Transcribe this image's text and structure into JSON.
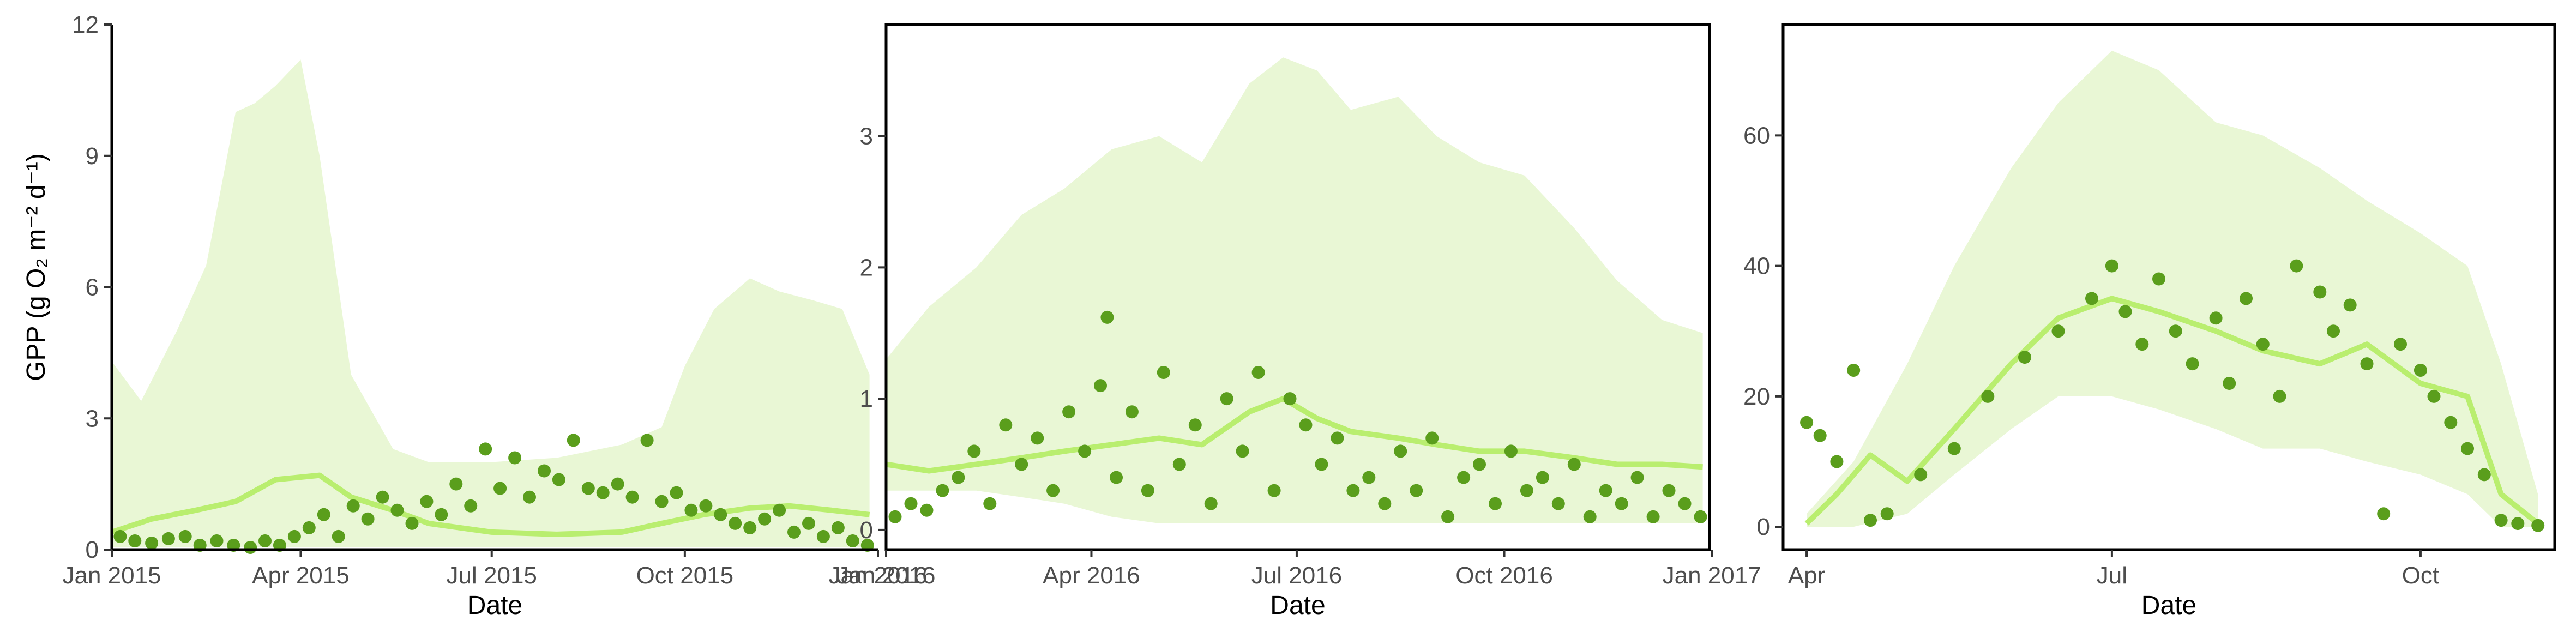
{
  "colors": {
    "band": "#e9f7d5",
    "line": "#b9ee6f",
    "points": "#5a9e1c",
    "axis": "#000000",
    "tick_text": "#4d4d4d"
  },
  "chart_data": [
    {
      "type": "line",
      "xlabel": "Date",
      "ylabel": "GPP (g O₂ m⁻² d⁻¹)",
      "ylim": [
        0,
        12
      ],
      "yticks": [
        0,
        3,
        6,
        9,
        12
      ],
      "xlim": [
        "2015-01-01",
        "2016-01-01"
      ],
      "xticks": [
        {
          "date": "2015-01-01",
          "label": "Jan 2015"
        },
        {
          "date": "2015-04-01",
          "label": "Apr 2015"
        },
        {
          "date": "2015-07-01",
          "label": "Jul 2015"
        },
        {
          "date": "2015-10-01",
          "label": "Oct 2015"
        },
        {
          "date": "2016-01-01",
          "label": "Jan 2016"
        }
      ],
      "band": {
        "x": [
          "2015-01-01",
          "2015-01-15",
          "2015-02-01",
          "2015-02-15",
          "2015-03-01",
          "2015-03-10",
          "2015-03-20",
          "2015-04-01",
          "2015-04-10",
          "2015-04-25",
          "2015-05-15",
          "2015-06-01",
          "2015-07-01",
          "2015-08-01",
          "2015-09-01",
          "2015-09-20",
          "2015-10-01",
          "2015-10-15",
          "2015-11-01",
          "2015-11-15",
          "2015-12-01",
          "2015-12-15",
          "2015-12-28"
        ],
        "upper": [
          4.3,
          3.4,
          5.0,
          6.5,
          10.0,
          10.2,
          10.6,
          11.2,
          9.0,
          4.0,
          2.3,
          2.0,
          2.0,
          2.1,
          2.4,
          2.8,
          4.2,
          5.5,
          6.2,
          5.9,
          5.7,
          5.5,
          4.0
        ],
        "lower": [
          0.05,
          0.05,
          0.05,
          0.05,
          0.05,
          0.05,
          0.05,
          0.05,
          0.05,
          0.05,
          0.05,
          0.05,
          0.05,
          0.05,
          0.05,
          0.05,
          0.05,
          0.05,
          0.05,
          0.05,
          0.05,
          0.05,
          0.05
        ]
      },
      "line": {
        "x": [
          "2015-01-01",
          "2015-01-20",
          "2015-02-10",
          "2015-03-01",
          "2015-03-20",
          "2015-04-10",
          "2015-04-25",
          "2015-05-15",
          "2015-06-01",
          "2015-07-01",
          "2015-08-01",
          "2015-09-01",
          "2015-09-20",
          "2015-10-10",
          "2015-11-01",
          "2015-11-20",
          "2015-12-10",
          "2015-12-28"
        ],
        "y": [
          0.4,
          0.7,
          0.9,
          1.1,
          1.6,
          1.7,
          1.2,
          0.9,
          0.6,
          0.4,
          0.35,
          0.4,
          0.6,
          0.8,
          0.95,
          1.0,
          0.9,
          0.8
        ]
      },
      "points": {
        "x": [
          "2015-01-05",
          "2015-01-12",
          "2015-01-20",
          "2015-01-28",
          "2015-02-05",
          "2015-02-12",
          "2015-02-20",
          "2015-02-28",
          "2015-03-08",
          "2015-03-15",
          "2015-03-22",
          "2015-03-29",
          "2015-04-05",
          "2015-04-12",
          "2015-04-19",
          "2015-04-26",
          "2015-05-03",
          "2015-05-10",
          "2015-05-17",
          "2015-05-24",
          "2015-05-31",
          "2015-06-07",
          "2015-06-14",
          "2015-06-21",
          "2015-06-28",
          "2015-07-05",
          "2015-07-12",
          "2015-07-19",
          "2015-07-26",
          "2015-08-02",
          "2015-08-09",
          "2015-08-16",
          "2015-08-23",
          "2015-08-30",
          "2015-09-06",
          "2015-09-13",
          "2015-09-20",
          "2015-09-27",
          "2015-10-04",
          "2015-10-11",
          "2015-10-18",
          "2015-10-25",
          "2015-11-01",
          "2015-11-08",
          "2015-11-15",
          "2015-11-22",
          "2015-11-29",
          "2015-12-06",
          "2015-12-13",
          "2015-12-20",
          "2015-12-27"
        ],
        "y": [
          0.3,
          0.2,
          0.15,
          0.25,
          0.3,
          0.1,
          0.2,
          0.1,
          0.05,
          0.2,
          0.1,
          0.3,
          0.5,
          0.8,
          0.3,
          1.0,
          0.7,
          1.2,
          0.9,
          0.6,
          1.1,
          0.8,
          1.5,
          1.0,
          2.3,
          1.4,
          2.1,
          1.2,
          1.8,
          1.6,
          2.5,
          1.4,
          1.3,
          1.5,
          1.2,
          2.5,
          1.1,
          1.3,
          0.9,
          1.0,
          0.8,
          0.6,
          0.5,
          0.7,
          0.9,
          0.4,
          0.6,
          0.3,
          0.5,
          0.2,
          0.1
        ]
      }
    },
    {
      "type": "line",
      "xlabel": "Date",
      "ylabel": "",
      "ylim": [
        -0.15,
        3.85
      ],
      "yticks": [
        0,
        1,
        2,
        3
      ],
      "xlim": [
        "2016-01-01",
        "2016-12-31"
      ],
      "xticks": [
        {
          "date": "2016-01-01",
          "label": "Jan 2016"
        },
        {
          "date": "2016-04-01",
          "label": "Apr 2016"
        },
        {
          "date": "2016-07-01",
          "label": "Jul 2016"
        },
        {
          "date": "2016-10-01",
          "label": "Oct 2016"
        },
        {
          "date": "2017-01-01",
          "label": "Jan 2017"
        }
      ],
      "band": {
        "x": [
          "2016-01-01",
          "2016-01-20",
          "2016-02-10",
          "2016-03-01",
          "2016-03-20",
          "2016-04-10",
          "2016-05-01",
          "2016-05-20",
          "2016-06-10",
          "2016-06-25",
          "2016-07-10",
          "2016-07-25",
          "2016-08-15",
          "2016-09-01",
          "2016-09-20",
          "2016-10-10",
          "2016-11-01",
          "2016-11-20",
          "2016-12-10",
          "2016-12-28"
        ],
        "upper": [
          1.3,
          1.7,
          2.0,
          2.4,
          2.6,
          2.9,
          3.0,
          2.8,
          3.4,
          3.6,
          3.5,
          3.2,
          3.3,
          3.0,
          2.8,
          2.7,
          2.3,
          1.9,
          1.6,
          1.5
        ],
        "lower": [
          0.3,
          0.3,
          0.3,
          0.25,
          0.2,
          0.1,
          0.05,
          0.05,
          0.05,
          0.05,
          0.05,
          0.05,
          0.05,
          0.05,
          0.05,
          0.05,
          0.05,
          0.05,
          0.05,
          0.05
        ]
      },
      "line": {
        "x": [
          "2016-01-01",
          "2016-01-20",
          "2016-02-10",
          "2016-03-01",
          "2016-03-20",
          "2016-04-10",
          "2016-05-01",
          "2016-05-20",
          "2016-06-10",
          "2016-06-25",
          "2016-07-10",
          "2016-07-25",
          "2016-08-15",
          "2016-09-01",
          "2016-09-20",
          "2016-10-10",
          "2016-11-01",
          "2016-11-20",
          "2016-12-10",
          "2016-12-28"
        ],
        "y": [
          0.5,
          0.45,
          0.5,
          0.55,
          0.6,
          0.65,
          0.7,
          0.65,
          0.9,
          1.0,
          0.85,
          0.75,
          0.7,
          0.65,
          0.6,
          0.6,
          0.55,
          0.5,
          0.5,
          0.48
        ]
      },
      "points": {
        "x": [
          "2016-01-05",
          "2016-01-12",
          "2016-01-19",
          "2016-01-26",
          "2016-02-02",
          "2016-02-09",
          "2016-02-16",
          "2016-02-23",
          "2016-03-01",
          "2016-03-08",
          "2016-03-15",
          "2016-03-22",
          "2016-03-29",
          "2016-04-05",
          "2016-04-08",
          "2016-04-12",
          "2016-04-19",
          "2016-04-26",
          "2016-05-03",
          "2016-05-10",
          "2016-05-17",
          "2016-05-24",
          "2016-05-31",
          "2016-06-07",
          "2016-06-14",
          "2016-06-21",
          "2016-06-28",
          "2016-07-05",
          "2016-07-12",
          "2016-07-19",
          "2016-07-26",
          "2016-08-02",
          "2016-08-09",
          "2016-08-16",
          "2016-08-23",
          "2016-08-30",
          "2016-09-06",
          "2016-09-13",
          "2016-09-20",
          "2016-09-27",
          "2016-10-04",
          "2016-10-11",
          "2016-10-18",
          "2016-10-25",
          "2016-11-01",
          "2016-11-08",
          "2016-11-15",
          "2016-11-22",
          "2016-11-29",
          "2016-12-06",
          "2016-12-13",
          "2016-12-20",
          "2016-12-27"
        ],
        "y": [
          0.1,
          0.2,
          0.15,
          0.3,
          0.4,
          0.6,
          0.2,
          0.8,
          0.5,
          0.7,
          0.3,
          0.9,
          0.6,
          1.1,
          1.62,
          0.4,
          0.9,
          0.3,
          1.2,
          0.5,
          0.8,
          0.2,
          1.0,
          0.6,
          1.2,
          0.3,
          1.0,
          0.8,
          0.5,
          0.7,
          0.3,
          0.4,
          0.2,
          0.6,
          0.3,
          0.7,
          0.1,
          0.4,
          0.5,
          0.2,
          0.6,
          0.3,
          0.4,
          0.2,
          0.5,
          0.1,
          0.3,
          0.2,
          0.4,
          0.1,
          0.3,
          0.2,
          0.1
        ]
      }
    },
    {
      "type": "line",
      "xlabel": "Date",
      "ylabel": "",
      "ylim": [
        -3.5,
        77
      ],
      "yticks": [
        0,
        20,
        40,
        60
      ],
      "xlim": [
        "2017-03-25",
        "2017-11-10"
      ],
      "xticks": [
        {
          "date": "2017-04-01",
          "label": "Apr"
        },
        {
          "date": "2017-07-01",
          "label": "Jul"
        },
        {
          "date": "2017-10-01",
          "label": "Oct"
        }
      ],
      "band": {
        "x": [
          "2017-04-01",
          "2017-04-15",
          "2017-05-01",
          "2017-05-15",
          "2017-06-01",
          "2017-06-15",
          "2017-07-01",
          "2017-07-15",
          "2017-08-01",
          "2017-08-15",
          "2017-09-01",
          "2017-09-15",
          "2017-10-01",
          "2017-10-15",
          "2017-10-25",
          "2017-11-05"
        ],
        "upper": [
          2,
          10,
          25,
          40,
          55,
          65,
          73,
          70,
          62,
          60,
          55,
          50,
          45,
          40,
          25,
          5
        ],
        "lower": [
          0,
          0,
          2,
          8,
          15,
          20,
          20,
          18,
          15,
          12,
          12,
          10,
          8,
          5,
          0,
          0
        ]
      },
      "line": {
        "x": [
          "2017-04-01",
          "2017-04-10",
          "2017-04-20",
          "2017-05-01",
          "2017-05-15",
          "2017-06-01",
          "2017-06-15",
          "2017-07-01",
          "2017-07-15",
          "2017-08-01",
          "2017-08-15",
          "2017-09-01",
          "2017-09-15",
          "2017-10-01",
          "2017-10-15",
          "2017-10-25",
          "2017-11-05"
        ],
        "y": [
          0.5,
          5,
          11,
          7,
          15,
          25,
          32,
          35,
          33,
          30,
          27,
          25,
          28,
          22,
          20,
          5,
          0.5
        ]
      },
      "points": {
        "x": [
          "2017-04-01",
          "2017-04-05",
          "2017-04-10",
          "2017-04-15",
          "2017-04-20",
          "2017-04-25",
          "2017-05-05",
          "2017-05-15",
          "2017-05-25",
          "2017-06-05",
          "2017-06-15",
          "2017-06-25",
          "2017-07-01",
          "2017-07-05",
          "2017-07-10",
          "2017-07-15",
          "2017-07-20",
          "2017-07-25",
          "2017-08-01",
          "2017-08-05",
          "2017-08-10",
          "2017-08-15",
          "2017-08-20",
          "2017-08-25",
          "2017-09-01",
          "2017-09-05",
          "2017-09-10",
          "2017-09-15",
          "2017-09-20",
          "2017-09-25",
          "2017-10-01",
          "2017-10-05",
          "2017-10-10",
          "2017-10-15",
          "2017-10-20",
          "2017-10-25",
          "2017-10-30",
          "2017-11-05"
        ],
        "y": [
          16,
          14,
          10,
          24,
          1,
          2,
          8,
          12,
          20,
          26,
          30,
          35,
          40,
          33,
          28,
          38,
          30,
          25,
          32,
          22,
          35,
          28,
          20,
          40,
          36,
          30,
          34,
          25,
          2,
          28,
          24,
          20,
          16,
          12,
          8,
          1,
          0.5,
          0.2
        ]
      }
    }
  ]
}
